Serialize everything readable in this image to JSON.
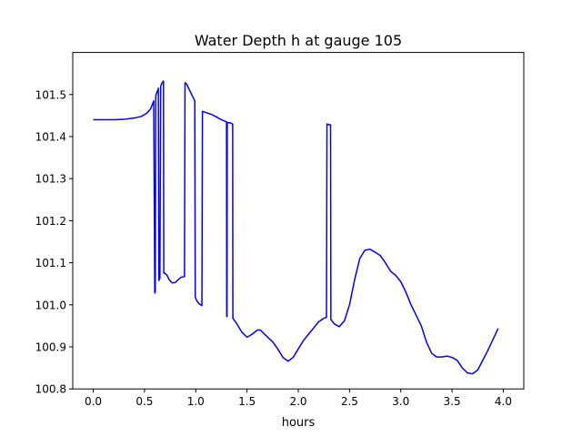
{
  "chart_data": {
    "type": "line",
    "title": "Water Depth h at gauge 105",
    "xlabel": "hours",
    "ylabel": "",
    "xlim": [
      -0.2,
      4.2
    ],
    "ylim": [
      100.8,
      101.6
    ],
    "xticks": [
      0.0,
      0.5,
      1.0,
      1.5,
      2.0,
      2.5,
      3.0,
      3.5,
      4.0
    ],
    "xtick_labels": [
      "0.0",
      "0.5",
      "1.0",
      "1.5",
      "2.0",
      "2.5",
      "3.0",
      "3.5",
      "4.0"
    ],
    "yticks": [
      100.8,
      100.9,
      101.0,
      101.1,
      101.2,
      101.3,
      101.4,
      101.5
    ],
    "ytick_labels": [
      "100.8",
      "100.9",
      "101.0",
      "101.1",
      "101.2",
      "101.3",
      "101.4",
      "101.5"
    ],
    "grid": false,
    "legend": "none",
    "series": [
      {
        "color": "#0000ff",
        "points": [
          [
            0.0,
            101.44
          ],
          [
            0.2,
            101.44
          ],
          [
            0.3,
            101.441
          ],
          [
            0.4,
            101.444
          ],
          [
            0.47,
            101.448
          ],
          [
            0.52,
            101.455
          ],
          [
            0.56,
            101.466
          ],
          [
            0.59,
            101.485
          ],
          [
            0.6,
            101.028
          ],
          [
            0.605,
            101.032
          ],
          [
            0.61,
            101.497
          ],
          [
            0.62,
            101.505
          ],
          [
            0.63,
            101.51
          ],
          [
            0.635,
            101.515
          ],
          [
            0.64,
            101.058
          ],
          [
            0.65,
            101.063
          ],
          [
            0.658,
            101.52
          ],
          [
            0.67,
            101.527
          ],
          [
            0.685,
            101.532
          ],
          [
            0.688,
            101.075
          ],
          [
            0.7,
            101.075
          ],
          [
            0.72,
            101.07
          ],
          [
            0.74,
            101.06
          ],
          [
            0.77,
            101.052
          ],
          [
            0.8,
            101.053
          ],
          [
            0.83,
            101.06
          ],
          [
            0.86,
            101.066
          ],
          [
            0.89,
            101.067
          ],
          [
            0.895,
            101.528
          ],
          [
            0.91,
            101.525
          ],
          [
            0.93,
            101.515
          ],
          [
            0.96,
            101.5
          ],
          [
            0.99,
            101.485
          ],
          [
            0.995,
            101.018
          ],
          [
            1.01,
            101.01
          ],
          [
            1.03,
            101.003
          ],
          [
            1.06,
            100.998
          ],
          [
            1.065,
            101.46
          ],
          [
            1.1,
            101.457
          ],
          [
            1.15,
            101.453
          ],
          [
            1.2,
            101.447
          ],
          [
            1.25,
            101.44
          ],
          [
            1.3,
            101.435
          ],
          [
            1.302,
            100.972
          ],
          [
            1.305,
            100.972
          ],
          [
            1.307,
            101.433
          ],
          [
            1.33,
            101.433
          ],
          [
            1.36,
            101.43
          ],
          [
            1.362,
            100.968
          ],
          [
            1.4,
            100.955
          ],
          [
            1.45,
            100.935
          ],
          [
            1.5,
            100.923
          ],
          [
            1.55,
            100.93
          ],
          [
            1.6,
            100.94
          ],
          [
            1.63,
            100.94
          ],
          [
            1.68,
            100.928
          ],
          [
            1.75,
            100.912
          ],
          [
            1.8,
            100.895
          ],
          [
            1.85,
            100.875
          ],
          [
            1.9,
            100.866
          ],
          [
            1.95,
            100.875
          ],
          [
            2.0,
            100.895
          ],
          [
            2.05,
            100.915
          ],
          [
            2.1,
            100.93
          ],
          [
            2.15,
            100.945
          ],
          [
            2.2,
            100.96
          ],
          [
            2.25,
            100.968
          ],
          [
            2.275,
            100.97
          ],
          [
            2.28,
            101.43
          ],
          [
            2.3,
            101.428
          ],
          [
            2.315,
            101.428
          ],
          [
            2.318,
            100.965
          ],
          [
            2.35,
            100.955
          ],
          [
            2.4,
            100.948
          ],
          [
            2.45,
            100.962
          ],
          [
            2.5,
            101.0
          ],
          [
            2.55,
            101.06
          ],
          [
            2.6,
            101.11
          ],
          [
            2.65,
            101.13
          ],
          [
            2.7,
            101.132
          ],
          [
            2.75,
            101.125
          ],
          [
            2.8,
            101.117
          ],
          [
            2.85,
            101.1
          ],
          [
            2.9,
            101.08
          ],
          [
            2.95,
            101.07
          ],
          [
            3.0,
            101.055
          ],
          [
            3.05,
            101.03
          ],
          [
            3.1,
            101.0
          ],
          [
            3.15,
            100.975
          ],
          [
            3.2,
            100.95
          ],
          [
            3.25,
            100.912
          ],
          [
            3.3,
            100.885
          ],
          [
            3.35,
            100.876
          ],
          [
            3.4,
            100.876
          ],
          [
            3.45,
            100.878
          ],
          [
            3.5,
            100.875
          ],
          [
            3.55,
            100.868
          ],
          [
            3.6,
            100.85
          ],
          [
            3.65,
            100.838
          ],
          [
            3.7,
            100.836
          ],
          [
            3.75,
            100.845
          ],
          [
            3.8,
            100.868
          ],
          [
            3.85,
            100.892
          ],
          [
            3.9,
            100.918
          ],
          [
            3.95,
            100.944
          ]
        ]
      }
    ]
  }
}
